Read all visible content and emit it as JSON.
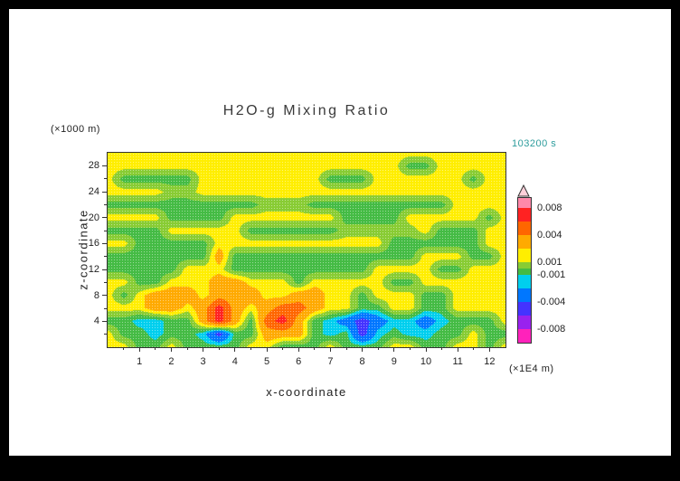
{
  "frame": {
    "background": "#000000",
    "paper": "#ffffff"
  },
  "header": {
    "title": "H2O-g Mixing Ratio",
    "time": "103200 s",
    "time_color": "#2d9c9c"
  },
  "axes": {
    "x": {
      "label": "x-coordinate",
      "unit": "(×1E4 m)"
    },
    "y": {
      "label": "z-coordinate",
      "unit": "(×1000 m)"
    }
  },
  "colorbar": {
    "cap_color": "#ffd0da",
    "outline_color": "#333333",
    "segments": [
      {
        "color": "#ff88aa",
        "h": 11
      },
      {
        "color": "#ff2222",
        "h": 15
      },
      {
        "color": "#ff6600",
        "h": 15
      },
      {
        "color": "#ffaa00",
        "h": 15
      },
      {
        "color": "#ffee00",
        "h": 15
      },
      {
        "color": "#88cc33",
        "h": 7
      },
      {
        "color": "#44bb44",
        "h": 7
      },
      {
        "color": "#00cfee",
        "h": 15
      },
      {
        "color": "#0077ff",
        "h": 15
      },
      {
        "color": "#4433ff",
        "h": 15
      },
      {
        "color": "#9922ee",
        "h": 15
      },
      {
        "color": "#ff22bb",
        "h": 15
      }
    ],
    "labels": [
      "0.008",
      "0.004",
      "0.001",
      "-0.001",
      "-0.004",
      "-0.008"
    ]
  },
  "chart_data": {
    "type": "heatmap",
    "title": "H2O-g Mixing Ratio",
    "time": "103200 s",
    "xlabel": "x-coordinate",
    "xunit": "(×1E4 m)",
    "ylabel": "z-coordinate",
    "yunit": "(×1000 m)",
    "xlim": [
      0,
      12.5
    ],
    "ylim": [
      0,
      30
    ],
    "x_ticks": [
      1,
      2,
      3,
      4,
      5,
      6,
      7,
      8,
      9,
      10,
      11,
      12
    ],
    "y_ticks": [
      4,
      8,
      12,
      16,
      20,
      24,
      28
    ],
    "levels": [
      -0.008,
      -0.006,
      -0.004,
      -0.002,
      -0.001,
      0,
      0.001,
      0.002,
      0.004,
      0.006,
      0.008
    ],
    "band_colors": [
      "#ff22bb",
      "#9922ee",
      "#4433ff",
      "#0077ff",
      "#00cfee",
      "#44bb44",
      "#88cc33",
      "#ffee00",
      "#ffaa00",
      "#ff6600",
      "#ff2222",
      "#ff88aa"
    ],
    "grid": {
      "x_range": [
        0,
        12.5
      ],
      "z_range": [
        30,
        0
      ],
      "cols": 26,
      "rows": 16,
      "order": "rows top (z=30) to bottom (z=0)",
      "codes": {
        "Y": 0.0015,
        "L": 0.0005,
        "G": -0.0005,
        "C": -0.0015,
        "U": -0.003,
        "D": -0.005,
        "O": 0.003,
        "R": 0.005,
        "X": 0.007
      },
      "rows_encoded": [
        "YYYYYYYYYYYYYYYYYYYYYYYYYY",
        "YYYYYYYYYYYYYYYYYYYGGYYYYY",
        "YGGGGGYYYYYYYYGGGYYYYYYGYY",
        "YYYYLLYYYYYYYYYYYYYYYYYYYY",
        "GGGGGGGGGGLLLGGGGGGGGGYYYY",
        "YYYYGGGGYYYYYYYGGGGYYYYYGY",
        "GGGGYYYYYGGGGGGLLLLLYGGGYY",
        "YYGGGGGYYYYYYYYYYYGGGGGGYY",
        "GGGGGGGOGGGGGGGGGGGGYYYGGY",
        "GGGGGYYYGGGGGGGGGYYYYGGYYY",
        "YYGGYYYOOYYYGYYYYYGGYYYYYY",
        "YGYOOOYOOOYYOOYYGYYYGGYYYY",
        "YYYOOYOXOYORROYYGGYYGGYYYY",
        "GGCCGGOXOGRXOGCUDUCCUCGGGY",
        "YGGCGGCDGGOOOGCGDCGCCGGYGG",
        "YYGGYGGGGYYGGGYGGGYYGGYYGY"
      ]
    }
  }
}
